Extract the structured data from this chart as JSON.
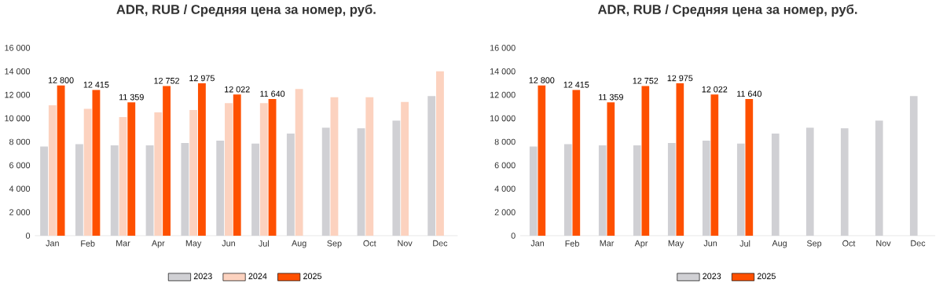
{
  "chart_data": [
    {
      "type": "bar",
      "title": "ADR, RUB / Средняя цена за номер, руб.",
      "categories": [
        "Jan",
        "Feb",
        "Mar",
        "Apr",
        "May",
        "Jun",
        "Jul",
        "Aug",
        "Sep",
        "Oct",
        "Nov",
        "Dec"
      ],
      "series": [
        {
          "name": "2023",
          "color": "#d0d0d4",
          "values": [
            7600,
            7800,
            7700,
            7700,
            7900,
            8100,
            7850,
            8700,
            9200,
            9150,
            9800,
            11900
          ]
        },
        {
          "name": "2024",
          "color": "#fcd2bf",
          "values": [
            11100,
            10800,
            10100,
            10500,
            10700,
            11300,
            11300,
            12500,
            11800,
            11800,
            11400,
            14000
          ]
        },
        {
          "name": "2025",
          "color": "#fe5000",
          "values": [
            12800,
            12415,
            11359,
            12752,
            12975,
            12022,
            11640,
            null,
            null,
            null,
            null,
            null
          ],
          "value_labels": [
            "12 800",
            "12 415",
            "11 359",
            "12 752",
            "12 975",
            "12 022",
            "11 640",
            null,
            null,
            null,
            null,
            null
          ]
        }
      ],
      "ylim": [
        0,
        16000
      ],
      "yticks": [
        {
          "value": 0,
          "label": "0"
        },
        {
          "value": 2000,
          "label": "2 000"
        },
        {
          "value": 4000,
          "label": "4 000"
        },
        {
          "value": 6000,
          "label": "6 000"
        },
        {
          "value": 8000,
          "label": "8 000"
        },
        {
          "value": 10000,
          "label": "10 000"
        },
        {
          "value": 12000,
          "label": "12 000"
        },
        {
          "value": 14000,
          "label": "14 000"
        },
        {
          "value": 16000,
          "label": "16 000"
        }
      ],
      "legend": "bottom"
    },
    {
      "type": "bar",
      "title": "ADR, RUB / Средняя цена за номер, руб.",
      "categories": [
        "Jan",
        "Feb",
        "Mar",
        "Apr",
        "May",
        "Jun",
        "Jul",
        "Aug",
        "Sep",
        "Oct",
        "Nov",
        "Dec"
      ],
      "series": [
        {
          "name": "2023",
          "color": "#d0d0d4",
          "values": [
            7600,
            7800,
            7700,
            7700,
            7900,
            8100,
            7850,
            8700,
            9200,
            9150,
            9800,
            11900
          ]
        },
        {
          "name": "2025",
          "color": "#fe5000",
          "values": [
            12800,
            12415,
            11359,
            12752,
            12975,
            12022,
            11640,
            null,
            null,
            null,
            null,
            null
          ],
          "value_labels": [
            "12 800",
            "12 415",
            "11 359",
            "12 752",
            "12 975",
            "12 022",
            "11 640",
            null,
            null,
            null,
            null,
            null
          ]
        }
      ],
      "ylim": [
        0,
        16000
      ],
      "yticks": [
        {
          "value": 0,
          "label": "0"
        },
        {
          "value": 2000,
          "label": "2 000"
        },
        {
          "value": 4000,
          "label": "4 000"
        },
        {
          "value": 6000,
          "label": "6 000"
        },
        {
          "value": 8000,
          "label": "8 000"
        },
        {
          "value": 10000,
          "label": "10 000"
        },
        {
          "value": 12000,
          "label": "12 000"
        },
        {
          "value": 14000,
          "label": "14 000"
        },
        {
          "value": 16000,
          "label": "16 000"
        }
      ],
      "legend": "bottom"
    }
  ]
}
